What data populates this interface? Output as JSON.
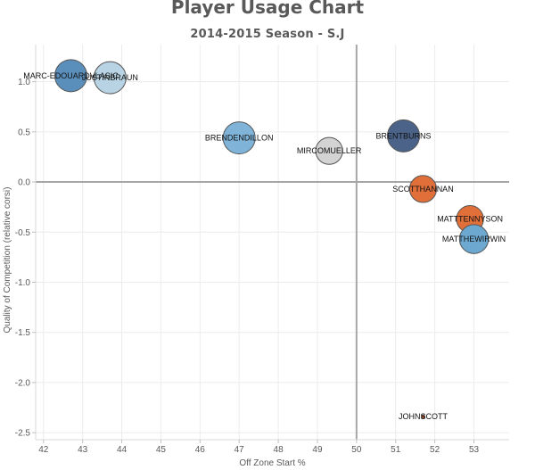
{
  "chart_data": {
    "type": "scatter",
    "title": "Player Usage Chart",
    "subtitle": "2014-2015 Season - S.J",
    "xlabel": "Off Zone Start %",
    "ylabel": "Quality of Competition (relative corsi)",
    "xlim": [
      41.8,
      53.9
    ],
    "ylim": [
      -2.57,
      1.37
    ],
    "xticks": [
      42,
      43,
      44,
      45,
      46,
      47,
      48,
      49,
      50,
      51,
      52,
      53
    ],
    "yticks": [
      1.0,
      0.5,
      0.0,
      -0.5,
      -1.0,
      -1.5,
      -2.0,
      -2.5
    ],
    "ytick_labels": [
      "1.0",
      "0.5",
      "0.0",
      "-0.5",
      "-1.0",
      "-1.5",
      "-2.0",
      "-2.5"
    ],
    "reference_lines": {
      "x": 50,
      "y": 0
    },
    "grid": true,
    "points": [
      {
        "name": "MARC-EDOUARDVLASIC",
        "x": 42.7,
        "y": 1.06,
        "size": 1.0,
        "color": "#5b8fbb"
      },
      {
        "name": "JUSTINBRAUN",
        "x": 43.7,
        "y": 1.04,
        "size": 1.0,
        "color": "#b8d4e4"
      },
      {
        "name": "BRENDENDILLON",
        "x": 47.0,
        "y": 0.44,
        "size": 1.0,
        "color": "#7fb3d8"
      },
      {
        "name": "MIRCOMUELLER",
        "x": 49.3,
        "y": 0.31,
        "size": 0.84,
        "color": "#d3d3d3"
      },
      {
        "name": "BRENTBURNS",
        "x": 51.2,
        "y": 0.46,
        "size": 1.0,
        "color": "#4c6389"
      },
      {
        "name": "SCOTTHANNAN",
        "x": 51.7,
        "y": -0.07,
        "size": 0.84,
        "color": "#e06f3a"
      },
      {
        "name": "MATTTENNYSON",
        "x": 52.9,
        "y": -0.37,
        "size": 0.84,
        "color": "#e06f3a"
      },
      {
        "name": "MATTHEWIRWIN",
        "x": 53.0,
        "y": -0.57,
        "size": 0.9,
        "color": "#6ca8d0"
      },
      {
        "name": "JOHNSCOTT",
        "x": 51.7,
        "y": -2.34,
        "size": 0.1,
        "color": "#b6451b"
      }
    ]
  }
}
